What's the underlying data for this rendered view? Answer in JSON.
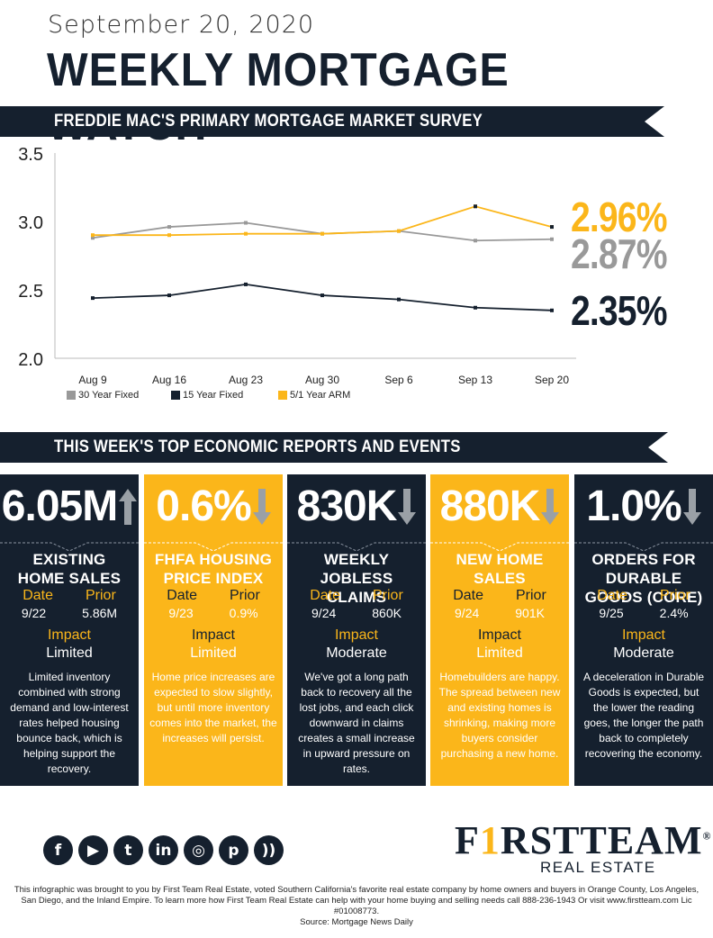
{
  "header": {
    "date": "September 20, 2020",
    "title": "WEEKLY MORTGAGE WATCH"
  },
  "section1": {
    "title": "FREDDIE MAC'S PRIMARY MORTGAGE MARKET SURVEY"
  },
  "section2": {
    "title": "THIS WEEK'S TOP ECONOMIC REPORTS AND EVENTS"
  },
  "chart_data": {
    "type": "line",
    "x": [
      "Aug 9",
      "Aug 16",
      "Aug 23",
      "Aug 30",
      "Sep 6",
      "Sep 13",
      "Sep 20"
    ],
    "yticks": [
      "3.5",
      "3.0",
      "2.5",
      "2.0"
    ],
    "ylim": [
      2.0,
      3.5
    ],
    "series": [
      {
        "name": "30 Year Fixed",
        "color": "#999999",
        "values": [
          2.88,
          2.96,
          2.99,
          2.91,
          2.93,
          2.86,
          2.87
        ],
        "final_label": "2.87%"
      },
      {
        "name": "15 Year Fixed",
        "color": "#15202e",
        "values": [
          2.44,
          2.46,
          2.54,
          2.46,
          2.43,
          2.37,
          2.35
        ],
        "final_label": "2.35%"
      },
      {
        "name": "5/1 Year ARM",
        "color": "#fbb61a",
        "values": [
          2.9,
          2.9,
          2.91,
          2.91,
          2.93,
          3.11,
          2.96
        ],
        "final_label": "2.96%"
      }
    ],
    "legend_position": "bottom-left"
  },
  "labels": {
    "date": "Date",
    "prior": "Prior",
    "impact": "Impact"
  },
  "cards": [
    {
      "value": "6.05M",
      "arrow": "up",
      "name": [
        "EXISTING",
        "HOME SALES"
      ],
      "date": "9/22",
      "prior": "5.86M",
      "impact": "Limited",
      "desc": "Limited inventory combined with strong demand and low-interest rates helped housing bounce back, which is helping support the recovery."
    },
    {
      "value": "0.6%",
      "arrow": "down",
      "name": [
        "FHFA HOUSING",
        "PRICE INDEX"
      ],
      "date": "9/23",
      "prior": "0.9%",
      "impact": "Limited",
      "desc": "Home price increases are expected to slow slightly, but until more inventory comes into the market, the increases will persist."
    },
    {
      "value": "830K",
      "arrow": "down",
      "name": [
        "WEEKLY JOBLESS",
        "CLAIMS"
      ],
      "date": "9/24",
      "prior": "860K",
      "impact": "Moderate",
      "desc": "We've got a long path back to recovery all the lost jobs, and each click downward in claims creates a small increase in upward pressure on rates."
    },
    {
      "value": "880K",
      "arrow": "down",
      "name": [
        "NEW HOME",
        "SALES"
      ],
      "date": "9/24",
      "prior": "901K",
      "impact": "Limited",
      "desc": "Homebuilders are happy. The spread between new and existing homes is shrinking, making more buyers consider purchasing a new home."
    },
    {
      "value": "1.0%",
      "arrow": "down",
      "name": [
        "ORDERS FOR DURABLE",
        "GOODS (CORE)"
      ],
      "date": "9/25",
      "prior": "2.4%",
      "impact": "Moderate",
      "desc": "A deceleration in Durable Goods is expected, but the lower the reading goes, the longer the path back to completely recovering the economy."
    }
  ],
  "social": [
    "f",
    "▶",
    "t",
    "in",
    "◎",
    "p",
    "))"
  ],
  "logo": {
    "part1": "F",
    "one": "1",
    "part2": "RST",
    "part3": "TEAM",
    "reg": "®",
    "sub": "REAL ESTATE"
  },
  "footer": {
    "line1": "This infographic was brought to you by First Team Real Estate, voted Southern California's favorite real estate company by home owners and buyers in Orange County, Los Angeles,",
    "line2": "San Diego, and the Inland Empire. To learn more how First Team Real Estate can help with your home buying and selling needs call 888-236-1943 Or visit www.firstteam.com Lic #01008773.",
    "line3": "Source: Mortgage News Daily"
  }
}
